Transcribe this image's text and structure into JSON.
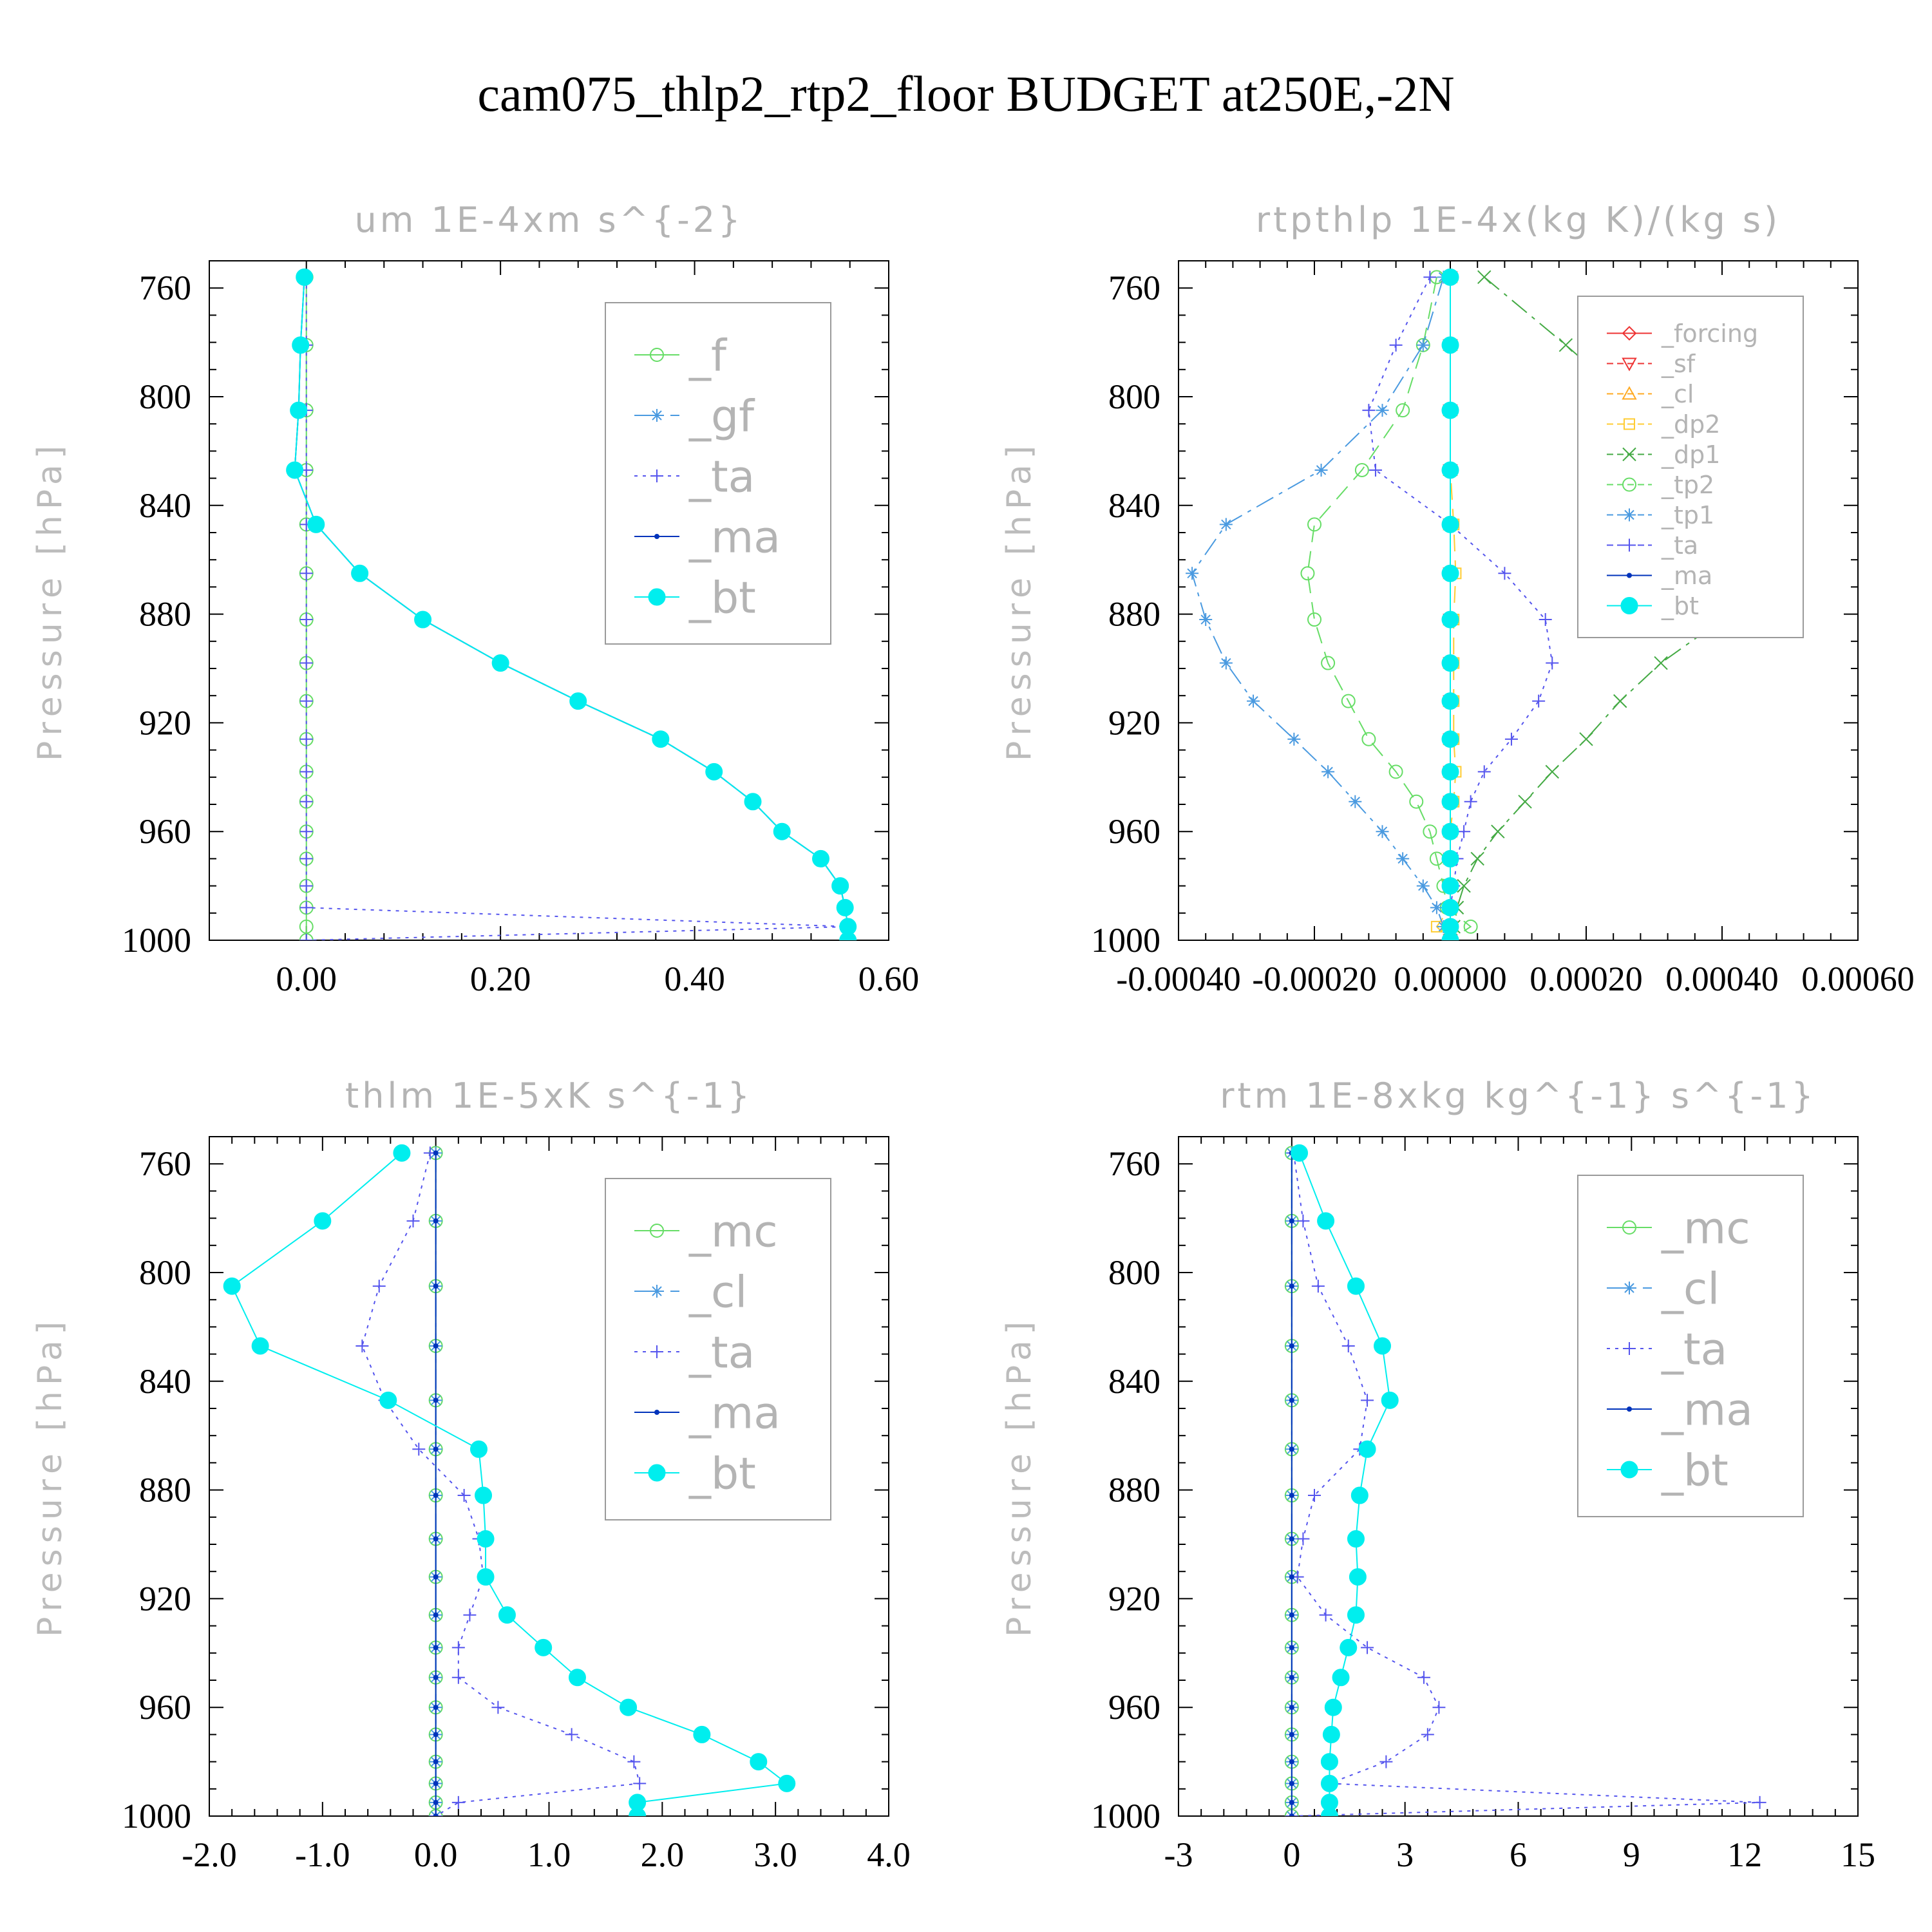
{
  "figure": {
    "title": "cam075_thlp2_rtp2_floor  BUDGET at250E,-2N"
  },
  "chart_data": [
    {
      "type": "line",
      "title": "um  1E-4xm s^{-2}",
      "ylabel": "Pressure [hPa]",
      "xlabel": "",
      "xlim": [
        -0.1,
        0.6
      ],
      "ylim": [
        750,
        1000
      ],
      "y_inverted": true,
      "xticks": [
        0.0,
        0.2,
        0.4,
        0.6
      ],
      "xtick_labels": [
        "0.00",
        "0.20",
        "0.40",
        "0.60"
      ],
      "yticks": [
        760,
        800,
        840,
        880,
        920,
        960,
        1000
      ],
      "ytick_labels": [
        "760",
        "800",
        "840",
        "880",
        "920",
        "960",
        "1000"
      ],
      "legend": {
        "position": "top-right",
        "font_size": 68
      },
      "levels": [
        756,
        781,
        805,
        827,
        847,
        865,
        882,
        898,
        912,
        926,
        938,
        949,
        960,
        970,
        980,
        988,
        995,
        1000
      ],
      "series": [
        {
          "name": "_f",
          "color": "#66dd66",
          "dash": "solid",
          "marker": "circle",
          "x": [
            0,
            0,
            0,
            0,
            0,
            0,
            0,
            0,
            0,
            0,
            0,
            0,
            0,
            0,
            0,
            0,
            0,
            0
          ]
        },
        {
          "name": "_gf",
          "color": "#4a9ae0",
          "dash": "dashdot",
          "marker": "asterisk",
          "x": [
            -0.002,
            -0.006,
            -0.008,
            -0.012,
            0.01,
            0.055,
            0.12,
            0.2,
            0.28,
            0.365,
            0.42,
            0.46,
            0.49,
            0.53,
            0.55,
            0.555,
            0.558,
            0.558
          ]
        },
        {
          "name": "_ta",
          "color": "#5555ee",
          "dash": "dotted",
          "marker": "plus",
          "x": [
            0,
            0,
            0,
            0,
            0,
            0,
            0,
            0,
            0,
            0,
            0,
            0,
            0,
            0,
            0,
            0,
            0.56,
            0
          ]
        },
        {
          "name": "_ma",
          "color": "#0033bb",
          "dash": "solid",
          "marker": "dot",
          "x": [
            -0.002,
            -0.006,
            -0.008,
            -0.012,
            0.01,
            0.055,
            0.12,
            0.2,
            0.28,
            0.365,
            0.42,
            0.46,
            0.49,
            0.53,
            0.55,
            0.555,
            0.558,
            0.558
          ]
        },
        {
          "name": "_bt",
          "color": "#00eeee",
          "dash": "solid",
          "marker": "bigdot",
          "x": [
            -0.002,
            -0.006,
            -0.008,
            -0.012,
            0.01,
            0.055,
            0.12,
            0.2,
            0.28,
            0.365,
            0.42,
            0.46,
            0.49,
            0.53,
            0.55,
            0.555,
            0.558,
            0.558
          ]
        }
      ]
    },
    {
      "type": "line",
      "title": "rtpthlp  1E-4x(kg K)/(kg s)",
      "ylabel": "Pressure [hPa]",
      "xlabel": "",
      "xlim": [
        -0.0004,
        0.0006
      ],
      "ylim": [
        750,
        1000
      ],
      "y_inverted": true,
      "xticks": [
        -0.0004,
        -0.0002,
        0.0,
        0.0002,
        0.0004,
        0.0006
      ],
      "xtick_labels": [
        "-0.00040",
        "-0.00020",
        "0.00000",
        "0.00020",
        "0.00040",
        "0.00060"
      ],
      "yticks": [
        760,
        800,
        840,
        880,
        920,
        960,
        1000
      ],
      "ytick_labels": [
        "760",
        "800",
        "840",
        "880",
        "920",
        "960",
        "1000"
      ],
      "legend": {
        "position": "top-right",
        "font_size": 38
      },
      "levels": [
        756,
        781,
        805,
        827,
        847,
        865,
        882,
        898,
        912,
        926,
        938,
        949,
        960,
        970,
        980,
        988,
        995,
        1000
      ],
      "series": [
        {
          "name": "_forcing",
          "color": "#ee3333",
          "dash": "solid",
          "marker": "diamond",
          "x": [
            0,
            0,
            0,
            0,
            0,
            0,
            0,
            0,
            0,
            0,
            0,
            0,
            0,
            0,
            0,
            0,
            0,
            0
          ]
        },
        {
          "name": "_sf",
          "color": "#ee3333",
          "dash": "dash",
          "marker": "tri-down",
          "x": [
            0,
            0,
            0,
            0,
            0,
            0,
            0,
            0,
            0,
            0,
            0,
            0,
            0,
            0,
            0,
            0,
            0,
            0
          ]
        },
        {
          "name": "_cl",
          "color": "#ffaa22",
          "dash": "dashdot",
          "marker": "tri-up",
          "x": [
            0,
            0,
            0,
            0,
            0,
            0,
            0,
            0,
            0,
            0,
            0,
            0,
            0,
            0,
            0,
            0,
            0,
            0
          ]
        },
        {
          "name": "_dp2",
          "color": "#ffcc33",
          "dash": "dash",
          "marker": "square",
          "x": [
            0,
            0,
            0,
            0,
            5e-06,
            8e-06,
            5e-06,
            5e-06,
            5e-06,
            5e-06,
            8e-06,
            5e-06,
            0,
            0,
            0,
            0,
            -2e-05,
            0
          ]
        },
        {
          "name": "_dp1",
          "color": "#44aa44",
          "dash": "dashdot",
          "marker": "cross",
          "x": [
            5e-05,
            0.00017,
            0.00028,
            0.00041,
            0.00051,
            0.00049,
            0.0004,
            0.00031,
            0.00025,
            0.0002,
            0.00015,
            0.00011,
            7e-05,
            4e-05,
            2e-05,
            1e-05,
            5e-06,
            0
          ]
        },
        {
          "name": "_tp2",
          "color": "#66dd66",
          "dash": "dash",
          "marker": "circle",
          "x": [
            -2e-05,
            -4e-05,
            -7e-05,
            -0.00013,
            -0.0002,
            -0.00021,
            -0.0002,
            -0.00018,
            -0.00015,
            -0.00012,
            -8e-05,
            -5e-05,
            -3e-05,
            -2e-05,
            -1e-05,
            -5e-06,
            3e-05,
            0
          ]
        },
        {
          "name": "_tp1",
          "color": "#4a9ae0",
          "dash": "dashdot",
          "marker": "asterisk",
          "x": [
            -1e-05,
            -4e-05,
            -0.0001,
            -0.00019,
            -0.00033,
            -0.00038,
            -0.00036,
            -0.00033,
            -0.00029,
            -0.00023,
            -0.00018,
            -0.00014,
            -0.0001,
            -7e-05,
            -4e-05,
            -2e-05,
            -1e-05,
            0
          ]
        },
        {
          "name": "_ta",
          "color": "#5555ee",
          "dash": "dotted",
          "marker": "plus",
          "x": [
            -3e-05,
            -8e-05,
            -0.00012,
            -0.00011,
            0,
            8e-05,
            0.00014,
            0.00015,
            0.00013,
            9e-05,
            5e-05,
            3e-05,
            2e-05,
            1e-05,
            5e-06,
            0,
            0,
            0
          ]
        },
        {
          "name": "_ma",
          "color": "#0033bb",
          "dash": "solid",
          "marker": "dot",
          "x": [
            0,
            0,
            0,
            0,
            0,
            0,
            0,
            0,
            0,
            0,
            0,
            0,
            0,
            0,
            0,
            0,
            0,
            0
          ]
        },
        {
          "name": "_bt",
          "color": "#00eeee",
          "dash": "solid",
          "marker": "bigdot",
          "x": [
            0,
            0,
            0,
            0,
            0,
            0,
            0,
            0,
            0,
            0,
            0,
            0,
            0,
            0,
            0,
            0,
            0,
            0
          ]
        }
      ]
    },
    {
      "type": "line",
      "title": "thlm  1E-5xK s^{-1}",
      "ylabel": "Pressure [hPa]",
      "xlabel": "",
      "xlim": [
        -2.0,
        4.0
      ],
      "ylim": [
        750,
        1000
      ],
      "y_inverted": true,
      "xticks": [
        -2.0,
        -1.0,
        0.0,
        1.0,
        2.0,
        3.0,
        4.0
      ],
      "xtick_labels": [
        "-2.0",
        "-1.0",
        "0.0",
        "1.0",
        "2.0",
        "3.0",
        "4.0"
      ],
      "yticks": [
        760,
        800,
        840,
        880,
        920,
        960,
        1000
      ],
      "ytick_labels": [
        "760",
        "800",
        "840",
        "880",
        "920",
        "960",
        "1000"
      ],
      "legend": {
        "position": "top-right",
        "font_size": 68
      },
      "levels": [
        756,
        781,
        805,
        827,
        847,
        865,
        882,
        898,
        912,
        926,
        938,
        949,
        960,
        970,
        980,
        988,
        995,
        1000
      ],
      "series": [
        {
          "name": "_mc",
          "color": "#66dd66",
          "dash": "solid",
          "marker": "circle",
          "x": [
            0,
            0,
            0,
            0,
            0,
            0,
            0,
            0,
            0,
            0,
            0,
            0,
            0,
            0,
            0,
            0,
            0,
            0
          ]
        },
        {
          "name": "_cl",
          "color": "#4a9ae0",
          "dash": "dashdot",
          "marker": "asterisk",
          "x": [
            0,
            0,
            0,
            0,
            0,
            0,
            0,
            0,
            0,
            0,
            0,
            0,
            0,
            0,
            0,
            0,
            0,
            0
          ]
        },
        {
          "name": "_ta",
          "color": "#5555ee",
          "dash": "dotted",
          "marker": "plus",
          "x": [
            -0.05,
            -0.2,
            -0.5,
            -0.65,
            -0.45,
            -0.15,
            0.25,
            0.38,
            0.42,
            0.3,
            0.2,
            0.2,
            0.55,
            1.2,
            1.75,
            1.8,
            0.2,
            0
          ]
        },
        {
          "name": "_ma",
          "color": "#0033bb",
          "dash": "solid",
          "marker": "dot",
          "x": [
            0,
            0,
            0,
            0,
            0,
            0,
            0,
            0,
            0,
            0,
            0,
            0,
            0,
            0,
            0,
            0,
            0,
            0
          ]
        },
        {
          "name": "_bt",
          "color": "#00eeee",
          "dash": "solid",
          "marker": "bigdot",
          "x": [
            -0.3,
            -1.0,
            -1.8,
            -1.55,
            -0.42,
            0.38,
            0.42,
            0.44,
            0.44,
            0.63,
            0.95,
            1.25,
            1.7,
            2.35,
            2.85,
            3.1,
            1.78,
            1.78
          ]
        }
      ]
    },
    {
      "type": "line",
      "title": "rtm  1E-8xkg kg^{-1} s^{-1}",
      "ylabel": "Pressure [hPa]",
      "xlabel": "",
      "xlim": [
        -3,
        15
      ],
      "ylim": [
        750,
        1000
      ],
      "y_inverted": true,
      "xticks": [
        -3,
        0,
        3,
        6,
        9,
        12,
        15
      ],
      "xtick_labels": [
        "-3",
        "0",
        "3",
        "6",
        "9",
        "12",
        "15"
      ],
      "yticks": [
        760,
        800,
        840,
        880,
        920,
        960,
        1000
      ],
      "ytick_labels": [
        "760",
        "800",
        "840",
        "880",
        "920",
        "960",
        "1000"
      ],
      "legend": {
        "position": "top-right",
        "font_size": 68
      },
      "levels": [
        756,
        781,
        805,
        827,
        847,
        865,
        882,
        898,
        912,
        926,
        938,
        949,
        960,
        970,
        980,
        988,
        995,
        1000
      ],
      "series": [
        {
          "name": "_mc",
          "color": "#66dd66",
          "dash": "solid",
          "marker": "circle",
          "x": [
            0,
            0,
            0,
            0,
            0,
            0,
            0,
            0,
            0,
            0,
            0,
            0,
            0,
            0,
            0,
            0,
            0,
            0
          ]
        },
        {
          "name": "_cl",
          "color": "#4a9ae0",
          "dash": "dashdot",
          "marker": "asterisk",
          "x": [
            0,
            0,
            0,
            0,
            0,
            0,
            0,
            0,
            0,
            0,
            0,
            0,
            0,
            0,
            0,
            0,
            0,
            0
          ]
        },
        {
          "name": "_ta",
          "color": "#5555ee",
          "dash": "dotted",
          "marker": "plus",
          "x": [
            0.05,
            0.3,
            0.7,
            1.5,
            2.0,
            1.8,
            0.6,
            0.3,
            0.15,
            0.9,
            2.0,
            3.5,
            3.9,
            3.6,
            2.5,
            1.0,
            12.4,
            0
          ]
        },
        {
          "name": "_ma",
          "color": "#0033bb",
          "dash": "solid",
          "marker": "dot",
          "x": [
            0,
            0,
            0,
            0,
            0,
            0,
            0,
            0,
            0,
            0,
            0,
            0,
            0,
            0,
            0,
            0,
            0,
            0
          ]
        },
        {
          "name": "_bt",
          "color": "#00eeee",
          "dash": "solid",
          "marker": "bigdot",
          "x": [
            0.2,
            0.9,
            1.7,
            2.4,
            2.6,
            2.0,
            1.8,
            1.7,
            1.75,
            1.7,
            1.5,
            1.3,
            1.1,
            1.05,
            1.0,
            1.0,
            1.0,
            1.0
          ]
        }
      ]
    }
  ]
}
